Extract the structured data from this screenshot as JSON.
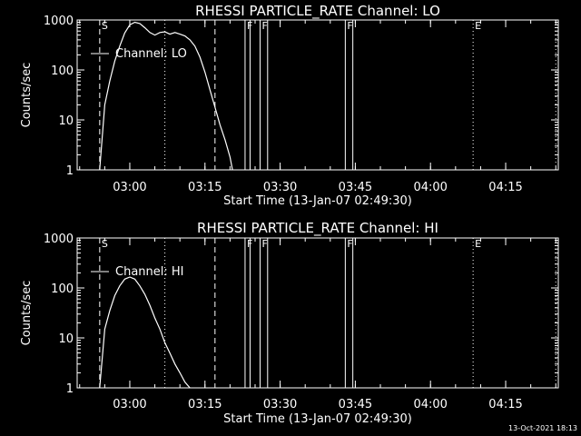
{
  "colors": {
    "background": "#000000",
    "foreground": "#ffffff"
  },
  "timestamp": "13-Oct-2021 18:13",
  "chart_data": [
    {
      "type": "line",
      "title": "RHESSI PARTICLE_RATE Channel: LO",
      "xlabel": "Start Time (13-Jan-07 02:49:30)",
      "ylabel": "Counts/sec",
      "xscale": "time (minutes since 02:49:30)",
      "yscale": "log",
      "xlim": [
        0,
        96
      ],
      "ylim": [
        1,
        1000
      ],
      "x_tick_labels": [
        "03:00",
        "03:15",
        "03:30",
        "03:45",
        "04:00",
        "04:15"
      ],
      "y_tick_labels": [
        "1",
        "10",
        "100",
        "1000"
      ],
      "legend": {
        "label": "Channel: LO",
        "placement": "top-left"
      },
      "flags": [
        {
          "label": "S",
          "time": "02:54:00",
          "style": "dashed"
        },
        {
          "label": "",
          "time": "03:07:00",
          "style": "dotted"
        },
        {
          "label": "",
          "time": "03:17:00",
          "style": "dashed"
        },
        {
          "label": "F",
          "time": "03:23:00",
          "style": "solid"
        },
        {
          "label": "",
          "time": "03:24:00",
          "style": "solid"
        },
        {
          "label": "F",
          "time": "03:26:00",
          "style": "solid"
        },
        {
          "label": "",
          "time": "03:27:30",
          "style": "solid"
        },
        {
          "label": "F",
          "time": "03:43:00",
          "style": "solid"
        },
        {
          "label": "",
          "time": "03:44:30",
          "style": "solid"
        },
        {
          "label": "E",
          "time": "04:08:30",
          "style": "dotted"
        },
        {
          "label": "",
          "time": "04:25:00",
          "style": "dotted"
        }
      ],
      "series": [
        {
          "name": "Channel: LO",
          "x": [
            "02:54:00",
            "02:55:00",
            "02:56:00",
            "02:57:00",
            "02:58:00",
            "02:59:00",
            "03:00:00",
            "03:01:00",
            "03:02:00",
            "03:03:00",
            "03:04:00",
            "03:05:00",
            "03:06:00",
            "03:07:00",
            "03:08:00",
            "03:09:00",
            "03:10:00",
            "03:11:00",
            "03:12:00",
            "03:13:00",
            "03:14:00",
            "03:15:00",
            "03:16:00",
            "03:17:00",
            "03:18:00",
            "03:19:00",
            "03:20:00",
            "03:20:30"
          ],
          "y": [
            1,
            20,
            60,
            150,
            300,
            550,
            800,
            900,
            850,
            700,
            560,
            500,
            560,
            580,
            520,
            560,
            520,
            480,
            400,
            300,
            180,
            90,
            40,
            18,
            8,
            4,
            1.8,
            1
          ]
        }
      ]
    },
    {
      "type": "line",
      "title": "RHESSI PARTICLE_RATE Channel: HI",
      "xlabel": "Start Time (13-Jan-07 02:49:30)",
      "ylabel": "Counts/sec",
      "xscale": "time (minutes since 02:49:30)",
      "yscale": "log",
      "xlim": [
        0,
        96
      ],
      "ylim": [
        1,
        1000
      ],
      "x_tick_labels": [
        "03:00",
        "03:15",
        "03:30",
        "03:45",
        "04:00",
        "04:15"
      ],
      "y_tick_labels": [
        "1",
        "10",
        "100",
        "1000"
      ],
      "legend": {
        "label": "Channel: HI",
        "placement": "top-left"
      },
      "flags": [
        {
          "label": "S",
          "time": "02:54:00",
          "style": "dashed"
        },
        {
          "label": "",
          "time": "03:07:00",
          "style": "dotted"
        },
        {
          "label": "",
          "time": "03:17:00",
          "style": "dashed"
        },
        {
          "label": "F",
          "time": "03:23:00",
          "style": "solid"
        },
        {
          "label": "",
          "time": "03:24:00",
          "style": "solid"
        },
        {
          "label": "F",
          "time": "03:26:00",
          "style": "solid"
        },
        {
          "label": "",
          "time": "03:27:30",
          "style": "solid"
        },
        {
          "label": "F",
          "time": "03:43:00",
          "style": "solid"
        },
        {
          "label": "",
          "time": "03:44:30",
          "style": "solid"
        },
        {
          "label": "E",
          "time": "04:08:30",
          "style": "dotted"
        },
        {
          "label": "",
          "time": "04:25:00",
          "style": "dotted"
        }
      ],
      "series": [
        {
          "name": "Channel: HI",
          "x": [
            "02:54:00",
            "02:55:00",
            "02:56:00",
            "02:57:00",
            "02:58:00",
            "02:59:00",
            "03:00:00",
            "03:01:00",
            "03:02:00",
            "03:03:00",
            "03:04:00",
            "03:05:00",
            "03:06:00",
            "03:07:00",
            "03:08:00",
            "03:09:00",
            "03:10:00",
            "03:11:00",
            "03:12:00"
          ],
          "y": [
            1,
            15,
            35,
            70,
            110,
            150,
            165,
            150,
            110,
            75,
            45,
            25,
            15,
            8,
            5,
            3,
            2,
            1.3,
            1
          ]
        }
      ]
    }
  ]
}
